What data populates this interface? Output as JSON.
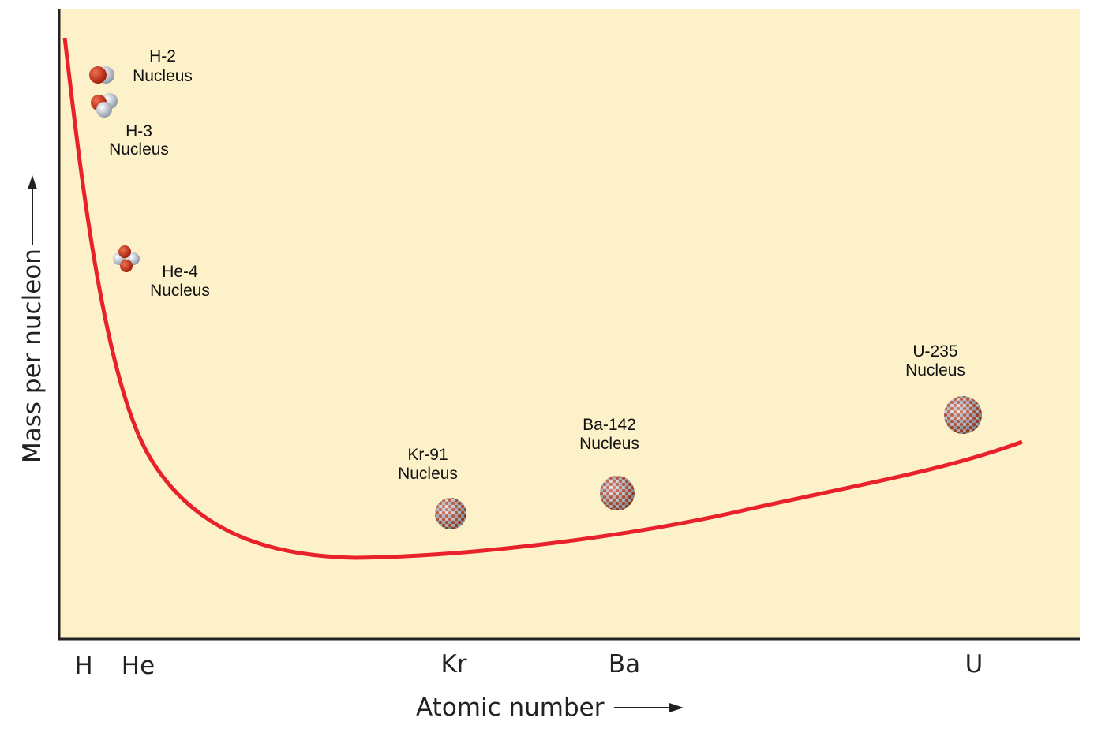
{
  "axes": {
    "x_title": "Atomic number",
    "y_title": "Mass per nucleon"
  },
  "x_labels": [
    "H",
    "He",
    "Kr",
    "Ba",
    "U"
  ],
  "nuclei": [
    {
      "name": "H-2",
      "label": "Nucleus"
    },
    {
      "name": "H-3",
      "label": "Nucleus"
    },
    {
      "name": "He-4",
      "label": "Nucleus"
    },
    {
      "name": "Kr-91",
      "label": "Nucleus"
    },
    {
      "name": "Ba-142",
      "label": "Nucleus"
    },
    {
      "name": "U-235",
      "label": "Nucleus"
    }
  ]
}
